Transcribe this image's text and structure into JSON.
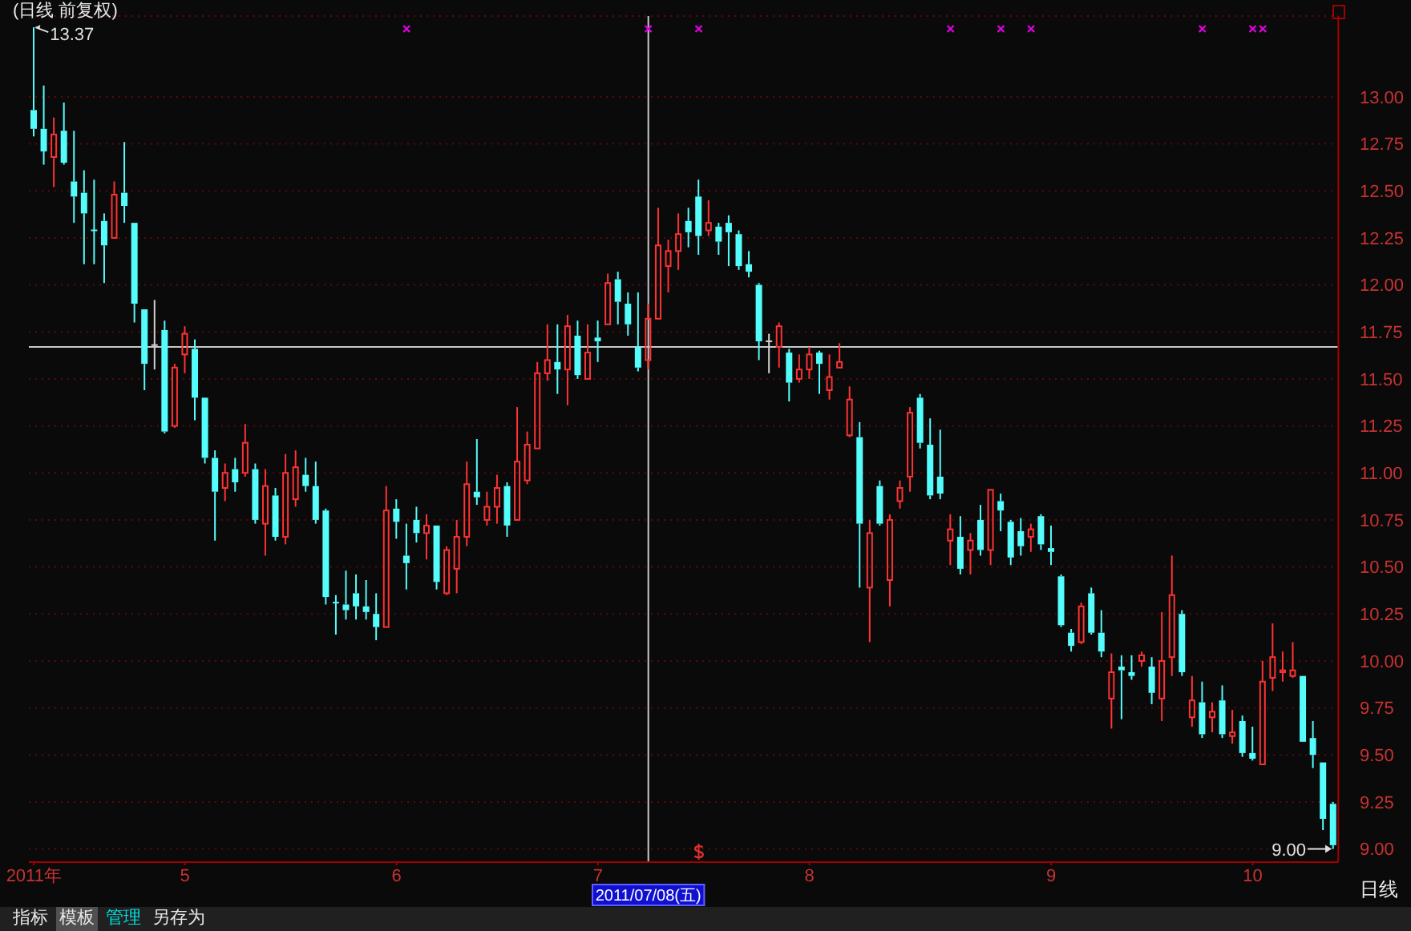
{
  "chart_data": {
    "type": "candlestick",
    "title": "(日线 前复权)",
    "categories": [
      "2011年",
      null,
      null,
      null,
      null,
      null,
      null,
      null,
      null,
      null,
      null,
      null,
      null,
      null,
      null,
      "5",
      null,
      null,
      null,
      null,
      null,
      null,
      null,
      null,
      null,
      null,
      null,
      null,
      null,
      null,
      null,
      null,
      null,
      null,
      null,
      null,
      "6",
      null,
      null,
      null,
      null,
      null,
      null,
      null,
      null,
      null,
      null,
      null,
      null,
      null,
      null,
      null,
      null,
      null,
      null,
      null,
      "7",
      null,
      null,
      null,
      null,
      "2011/07/08(五)",
      null,
      null,
      null,
      null,
      null,
      null,
      null,
      null,
      null,
      null,
      null,
      null,
      null,
      null,
      null,
      "8",
      null,
      null,
      null,
      null,
      null,
      null,
      null,
      null,
      null,
      null,
      null,
      null,
      null,
      null,
      null,
      null,
      null,
      null,
      null,
      null,
      null,
      null,
      null,
      "9",
      null,
      null,
      null,
      null,
      null,
      null,
      null,
      null,
      null,
      null,
      null,
      null,
      null,
      null,
      null,
      null,
      null,
      null,
      null,
      "10",
      null,
      null,
      null,
      null,
      null,
      null,
      null,
      null
    ],
    "ohlc": [
      [
        12.93,
        13.37,
        12.79,
        12.83
      ],
      [
        12.83,
        13.06,
        12.64,
        12.71
      ],
      [
        12.68,
        12.89,
        12.52,
        12.8
      ],
      [
        12.82,
        12.97,
        12.64,
        12.65
      ],
      [
        12.55,
        12.82,
        12.33,
        12.47
      ],
      [
        12.49,
        12.61,
        12.11,
        12.38
      ],
      [
        12.29,
        12.56,
        12.11,
        12.29
      ],
      [
        12.34,
        12.38,
        12.01,
        12.21
      ],
      [
        12.25,
        12.55,
        12.25,
        12.48
      ],
      [
        12.49,
        12.76,
        12.33,
        12.42
      ],
      [
        12.33,
        12.33,
        11.8,
        11.9
      ],
      [
        11.87,
        11.87,
        11.44,
        11.58
      ],
      [
        11.68,
        11.92,
        11.55,
        11.68
      ],
      [
        11.76,
        11.81,
        11.21,
        11.22
      ],
      [
        11.25,
        11.58,
        11.24,
        11.56
      ],
      [
        11.63,
        11.78,
        11.53,
        11.74
      ],
      [
        11.66,
        11.71,
        11.28,
        11.4
      ],
      [
        11.4,
        11.4,
        11.05,
        11.08
      ],
      [
        11.08,
        11.12,
        10.64,
        10.9
      ],
      [
        10.92,
        11.05,
        10.85,
        11.0
      ],
      [
        11.02,
        11.08,
        10.9,
        10.95
      ],
      [
        11.0,
        11.26,
        10.98,
        11.16
      ],
      [
        11.02,
        11.05,
        10.73,
        10.75
      ],
      [
        10.73,
        11.02,
        10.56,
        10.93
      ],
      [
        10.88,
        10.92,
        10.64,
        10.66
      ],
      [
        10.66,
        11.1,
        10.62,
        11.0
      ],
      [
        10.86,
        11.12,
        10.82,
        11.03
      ],
      [
        10.99,
        11.08,
        10.9,
        10.93
      ],
      [
        10.93,
        11.06,
        10.73,
        10.75
      ],
      [
        10.8,
        10.81,
        10.3,
        10.34
      ],
      [
        10.31,
        10.35,
        10.14,
        10.31
      ],
      [
        10.3,
        10.48,
        10.22,
        10.27
      ],
      [
        10.36,
        10.46,
        10.22,
        10.29
      ],
      [
        10.29,
        10.43,
        10.22,
        10.26
      ],
      [
        10.25,
        10.36,
        10.11,
        10.18
      ],
      [
        10.18,
        10.93,
        10.18,
        10.8
      ],
      [
        10.81,
        10.86,
        10.65,
        10.74
      ],
      [
        10.56,
        10.73,
        10.38,
        10.52
      ],
      [
        10.75,
        10.82,
        10.63,
        10.68
      ],
      [
        10.68,
        10.78,
        10.54,
        10.72
      ],
      [
        10.72,
        10.72,
        10.38,
        10.42
      ],
      [
        10.36,
        10.61,
        10.35,
        10.59
      ],
      [
        10.49,
        10.75,
        10.36,
        10.66
      ],
      [
        10.66,
        11.06,
        10.61,
        10.94
      ],
      [
        10.9,
        11.18,
        10.83,
        10.87
      ],
      [
        10.75,
        10.9,
        10.72,
        10.82
      ],
      [
        10.82,
        10.99,
        10.73,
        10.92
      ],
      [
        10.93,
        10.95,
        10.66,
        10.72
      ],
      [
        10.75,
        11.35,
        10.75,
        11.06
      ],
      [
        10.96,
        11.22,
        10.94,
        11.15
      ],
      [
        11.13,
        11.59,
        11.13,
        11.53
      ],
      [
        11.53,
        11.79,
        11.49,
        11.6
      ],
      [
        11.59,
        11.79,
        11.42,
        11.55
      ],
      [
        11.55,
        11.84,
        11.36,
        11.78
      ],
      [
        11.73,
        11.81,
        11.5,
        11.52
      ],
      [
        11.5,
        11.79,
        11.5,
        11.64
      ],
      [
        11.72,
        11.81,
        11.59,
        11.7
      ],
      [
        11.79,
        12.06,
        11.79,
        12.01
      ],
      [
        12.03,
        12.07,
        11.79,
        11.91
      ],
      [
        11.9,
        11.96,
        11.73,
        11.79
      ],
      [
        11.67,
        11.96,
        11.54,
        11.56
      ],
      [
        11.6,
        11.9,
        11.55,
        11.82
      ],
      [
        11.82,
        12.41,
        11.82,
        12.21
      ],
      [
        12.1,
        12.24,
        11.96,
        12.18
      ],
      [
        12.18,
        12.38,
        12.08,
        12.27
      ],
      [
        12.34,
        12.41,
        12.2,
        12.28
      ],
      [
        12.47,
        12.56,
        12.16,
        12.26
      ],
      [
        12.29,
        12.45,
        12.26,
        12.33
      ],
      [
        12.31,
        12.33,
        12.16,
        12.23
      ],
      [
        12.33,
        12.37,
        12.1,
        12.28
      ],
      [
        12.27,
        12.29,
        12.08,
        12.1
      ],
      [
        12.11,
        12.18,
        12.04,
        12.07
      ],
      [
        12.0,
        12.01,
        11.6,
        11.7
      ],
      [
        11.7,
        11.74,
        11.53,
        11.7
      ],
      [
        11.67,
        11.8,
        11.56,
        11.78
      ],
      [
        11.64,
        11.66,
        11.38,
        11.48
      ],
      [
        11.5,
        11.63,
        11.48,
        11.55
      ],
      [
        11.55,
        11.67,
        11.5,
        11.63
      ],
      [
        11.64,
        11.65,
        11.42,
        11.58
      ],
      [
        11.44,
        11.63,
        11.39,
        11.51
      ],
      [
        11.56,
        11.69,
        11.56,
        11.59
      ],
      [
        11.2,
        11.46,
        11.19,
        11.39
      ],
      [
        11.19,
        11.27,
        10.39,
        10.73
      ],
      [
        10.39,
        10.75,
        10.1,
        10.68
      ],
      [
        10.93,
        10.96,
        10.72,
        10.73
      ],
      [
        10.43,
        10.78,
        10.29,
        10.75
      ],
      [
        10.85,
        10.96,
        10.81,
        10.92
      ],
      [
        10.98,
        11.35,
        10.9,
        11.32
      ],
      [
        11.4,
        11.42,
        11.13,
        11.16
      ],
      [
        11.15,
        11.29,
        10.86,
        10.88
      ],
      [
        10.98,
        11.23,
        10.86,
        10.89
      ],
      [
        10.64,
        10.78,
        10.51,
        10.7
      ],
      [
        10.66,
        10.77,
        10.46,
        10.49
      ],
      [
        10.59,
        10.68,
        10.46,
        10.64
      ],
      [
        10.75,
        10.83,
        10.56,
        10.59
      ],
      [
        10.59,
        10.91,
        10.51,
        10.91
      ],
      [
        10.85,
        10.89,
        10.69,
        10.8
      ],
      [
        10.74,
        10.75,
        10.51,
        10.55
      ],
      [
        10.69,
        10.76,
        10.56,
        10.61
      ],
      [
        10.66,
        10.73,
        10.58,
        10.7
      ],
      [
        10.77,
        10.78,
        10.59,
        10.62
      ],
      [
        10.6,
        10.72,
        10.51,
        10.58
      ],
      [
        10.45,
        10.46,
        10.18,
        10.19
      ],
      [
        10.15,
        10.17,
        10.05,
        10.08
      ],
      [
        10.1,
        10.31,
        10.09,
        10.29
      ],
      [
        10.36,
        10.39,
        10.14,
        10.15
      ],
      [
        10.15,
        10.27,
        10.02,
        10.05
      ],
      [
        9.8,
        10.04,
        9.64,
        9.94
      ],
      [
        9.97,
        10.03,
        9.69,
        9.95
      ],
      [
        9.94,
        10.03,
        9.9,
        9.92
      ],
      [
        10.0,
        10.05,
        9.97,
        10.03
      ],
      [
        9.97,
        10.02,
        9.77,
        9.83
      ],
      [
        9.8,
        10.26,
        9.68,
        10.0
      ],
      [
        10.02,
        10.56,
        9.92,
        10.35
      ],
      [
        10.25,
        10.27,
        9.92,
        9.94
      ],
      [
        9.7,
        9.92,
        9.65,
        9.79
      ],
      [
        9.78,
        9.89,
        9.59,
        9.61
      ],
      [
        9.7,
        9.78,
        9.62,
        9.73
      ],
      [
        9.79,
        9.87,
        9.59,
        9.61
      ],
      [
        9.6,
        9.74,
        9.56,
        9.62
      ],
      [
        9.68,
        9.71,
        9.49,
        9.51
      ],
      [
        9.51,
        9.65,
        9.47,
        9.48
      ],
      [
        9.45,
        10.0,
        9.45,
        9.89
      ],
      [
        9.91,
        10.2,
        9.84,
        10.02
      ],
      [
        9.94,
        10.05,
        9.89,
        9.95
      ],
      [
        9.92,
        10.1,
        9.91,
        9.95
      ],
      [
        9.92,
        9.92,
        9.57,
        9.57
      ],
      [
        9.59,
        9.68,
        9.43,
        9.5
      ],
      [
        9.46,
        9.46,
        9.1,
        9.16
      ],
      [
        9.24,
        9.25,
        9.0,
        9.02
      ]
    ],
    "colors": [
      "#54fcfc",
      "#54fcfc",
      "#ff3232",
      "#54fcfc",
      "#54fcfc",
      "#54fcfc",
      "#54fcfc",
      "#54fcfc",
      "#ff3232",
      "#54fcfc",
      "#54fcfc",
      "#54fcfc",
      "#d0d0d0",
      "#54fcfc",
      "#ff3232",
      "#ff3232",
      "#54fcfc",
      "#54fcfc",
      "#54fcfc",
      "#ff3232",
      "#54fcfc",
      "#ff3232",
      "#54fcfc",
      "#ff3232",
      "#54fcfc",
      "#ff3232",
      "#ff3232",
      "#54fcfc",
      "#54fcfc",
      "#54fcfc",
      "#54fcfc",
      "#54fcfc",
      "#54fcfc",
      "#54fcfc",
      "#54fcfc",
      "#ff3232",
      "#54fcfc",
      "#54fcfc",
      "#54fcfc",
      "#ff3232",
      "#54fcfc",
      "#ff3232",
      "#ff3232",
      "#ff3232",
      "#54fcfc",
      "#ff3232",
      "#ff3232",
      "#54fcfc",
      "#ff3232",
      "#ff3232",
      "#ff3232",
      "#ff3232",
      "#54fcfc",
      "#ff3232",
      "#54fcfc",
      "#ff3232",
      "#54fcfc",
      "#ff3232",
      "#54fcfc",
      "#54fcfc",
      "#54fcfc",
      "#ff3232",
      "#ff3232",
      "#ff3232",
      "#ff3232",
      "#54fcfc",
      "#54fcfc",
      "#ff3232",
      "#54fcfc",
      "#54fcfc",
      "#54fcfc",
      "#54fcfc",
      "#54fcfc",
      "#d0d0d0",
      "#ff3232",
      "#54fcfc",
      "#ff3232",
      "#ff3232",
      "#54fcfc",
      "#ff3232",
      "#ff3232",
      "#ff3232",
      "#54fcfc",
      "#ff3232",
      "#54fcfc",
      "#ff3232",
      "#ff3232",
      "#ff3232",
      "#54fcfc",
      "#54fcfc",
      "#54fcfc",
      "#ff3232",
      "#54fcfc",
      "#ff3232",
      "#54fcfc",
      "#ff3232",
      "#54fcfc",
      "#54fcfc",
      "#54fcfc",
      "#ff3232",
      "#54fcfc",
      "#54fcfc",
      "#54fcfc",
      "#54fcfc",
      "#ff3232",
      "#54fcfc",
      "#54fcfc",
      "#ff3232",
      "#54fcfc",
      "#54fcfc",
      "#ff3232",
      "#54fcfc",
      "#ff3232",
      "#ff3232",
      "#54fcfc",
      "#ff3232",
      "#54fcfc",
      "#ff3232",
      "#54fcfc",
      "#ff3232",
      "#54fcfc",
      "#54fcfc",
      "#ff3232",
      "#ff3232",
      "#ff3232",
      "#ff3232",
      "#54fcfc",
      "#54fcfc",
      "#54fcfc",
      "#54fcfc"
    ],
    "ylim": [
      8.93,
      13.43
    ],
    "yticks": [
      {
        "value": 9,
        "label": "9.00"
      },
      {
        "value": 9.25,
        "label": "9.25"
      },
      {
        "value": 9.5,
        "label": "9.50"
      },
      {
        "value": 9.75,
        "label": "9.75"
      },
      {
        "value": 10,
        "label": "10.00"
      },
      {
        "value": 10.25,
        "label": "10.25"
      },
      {
        "value": 10.5,
        "label": "10.50"
      },
      {
        "value": 10.75,
        "label": "10.75"
      },
      {
        "value": 11,
        "label": "11.00"
      },
      {
        "value": 11.25,
        "label": "11.25"
      },
      {
        "value": 11.5,
        "label": "11.50"
      },
      {
        "value": 11.75,
        "label": "11.75"
      },
      {
        "value": 12,
        "label": "12.00"
      },
      {
        "value": 12.25,
        "label": "12.25"
      },
      {
        "value": 12.5,
        "label": "12.50"
      },
      {
        "value": 12.75,
        "label": "12.75"
      },
      {
        "value": 13,
        "label": "13.00"
      }
    ],
    "grid": "y",
    "ref_lines": [
      {
        "axis": "x",
        "value": "2011/07/08(五)",
        "color": "#c8c8c8"
      },
      {
        "axis": "y",
        "value": 11.67,
        "color": "#c8c8c8"
      }
    ],
    "annotations": [
      "13.37",
      "9.00",
      "日线",
      "指标",
      "模板",
      "管理",
      "另存为"
    ]
  }
}
